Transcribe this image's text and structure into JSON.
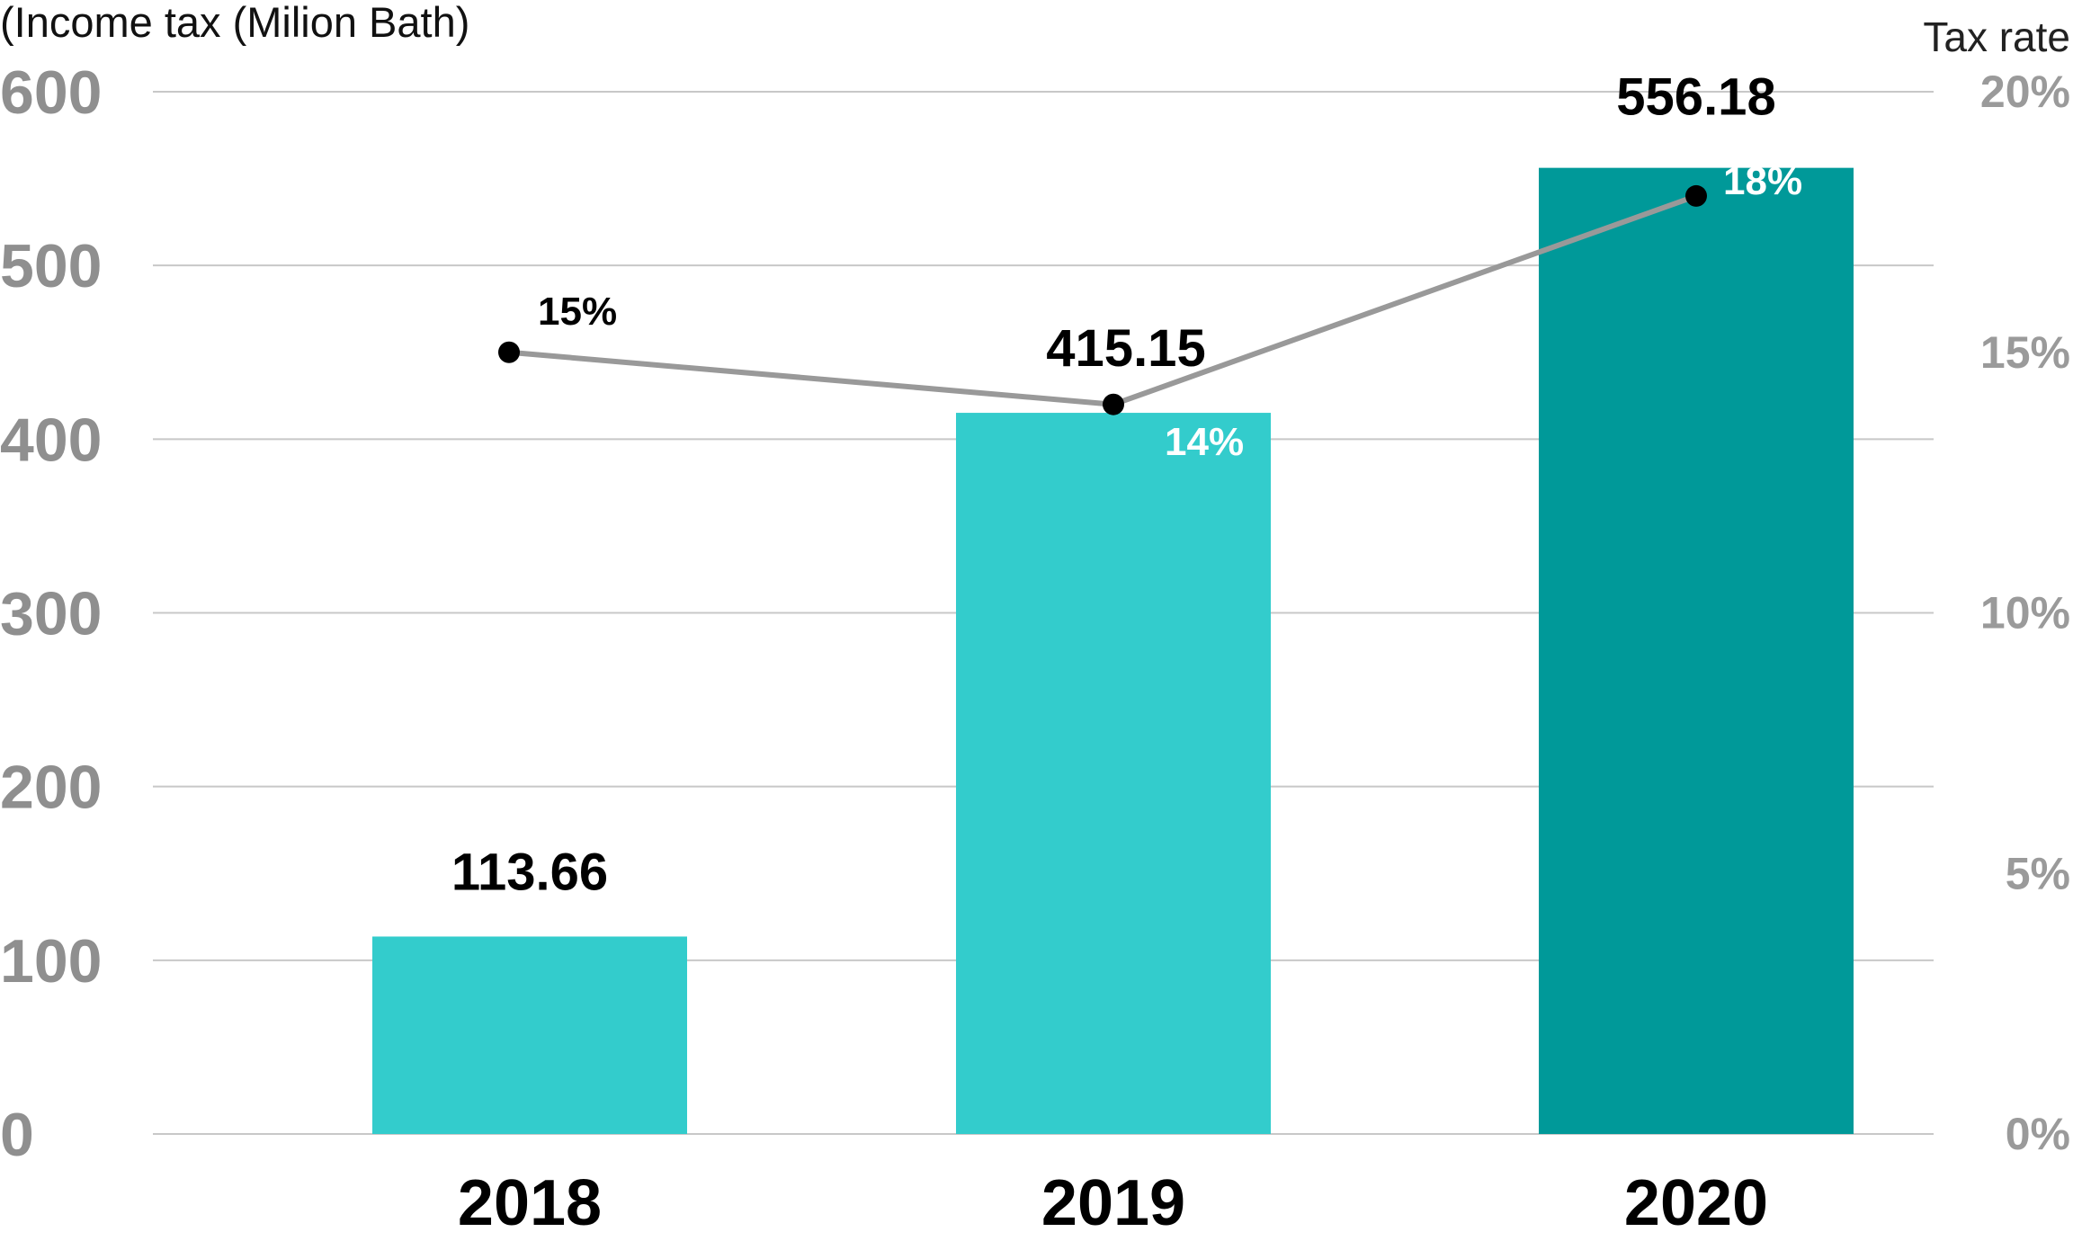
{
  "chart_data": {
    "type": "bar",
    "categories": [
      "2018",
      "2019",
      "2020"
    ],
    "ylabel": "(Income tax (Milion Bath)",
    "y2label": "Tax rate",
    "ylim": [
      0,
      600
    ],
    "y2lim": [
      0,
      20
    ],
    "yticks": [
      "0",
      "100",
      "200",
      "300",
      "400",
      "500",
      "600"
    ],
    "y2ticks": [
      "0%",
      "5%",
      "10%",
      "15%",
      "20%"
    ],
    "grid": true,
    "bars": {
      "values": [
        113.66,
        415.15,
        556.18
      ],
      "labels": [
        "113.66",
        "415.15",
        "556.18"
      ],
      "colors": [
        "#33cccc",
        "#33cccc",
        "#009999"
      ]
    },
    "line": {
      "type": "line",
      "axis": "secondary",
      "values": [
        15,
        14,
        18
      ],
      "labels": [
        "15%",
        "14%",
        "18%"
      ],
      "color": "#999999",
      "marker_color": "#000000",
      "label_colors": [
        "#000000",
        "#ffffff",
        "#ffffff"
      ]
    },
    "colors": {
      "grid": "#c8c8c8",
      "left_ticks": "#8f8f8f",
      "right_ticks": "#9a9a9a"
    }
  }
}
